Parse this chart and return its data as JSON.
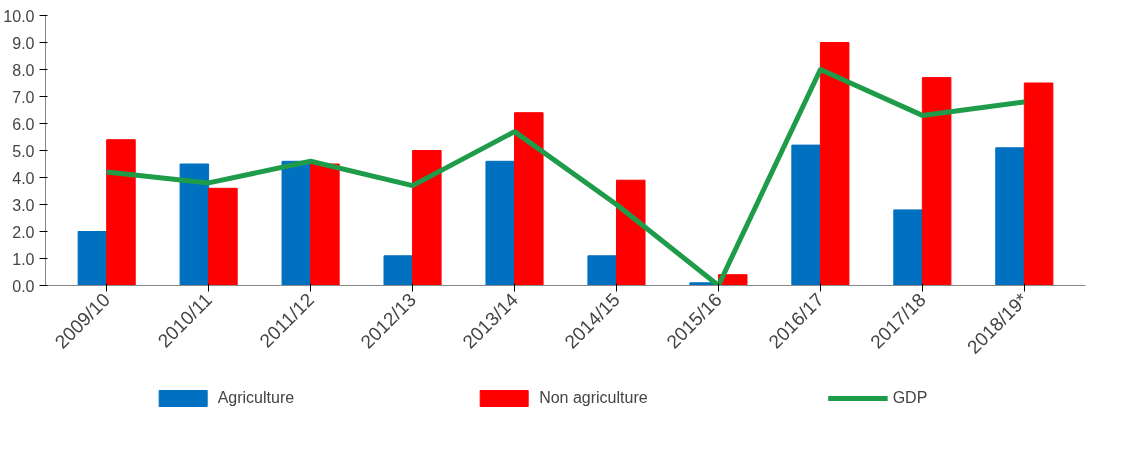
{
  "chart_data": {
    "type": "bar",
    "categories": [
      "2009/10",
      "2010/11",
      "2011/12",
      "2012/13",
      "2013/14",
      "2014/15",
      "2015/16",
      "2016/17",
      "2017/18",
      "2018/19*"
    ],
    "series": [
      {
        "name": "Agriculture",
        "color": "#0070c0",
        "values": [
          2.0,
          4.5,
          4.6,
          1.1,
          4.6,
          1.1,
          0.1,
          5.2,
          2.8,
          5.1
        ]
      },
      {
        "name": "Non agriculture",
        "color": "#ff0000",
        "values": [
          5.4,
          3.6,
          4.5,
          5.0,
          6.4,
          3.9,
          0.4,
          9.0,
          7.7,
          7.5
        ]
      },
      {
        "name": "GDP",
        "color": "#1e9c4a",
        "type": "line",
        "values": [
          4.2,
          3.8,
          4.6,
          3.7,
          5.7,
          3.0,
          0.0,
          8.0,
          6.3,
          6.8
        ]
      }
    ],
    "ylim": [
      0,
      10
    ],
    "yticks": [
      {
        "value": 0,
        "label": "0.0"
      },
      {
        "value": 1,
        "label": "1.0"
      },
      {
        "value": 2,
        "label": "2.0"
      },
      {
        "value": 3,
        "label": "3.0"
      },
      {
        "value": 4,
        "label": "4.0"
      },
      {
        "value": 5,
        "label": "5.0"
      },
      {
        "value": 6,
        "label": "6.0"
      },
      {
        "value": 7,
        "label": "7.0"
      },
      {
        "value": 8,
        "label": "8.0"
      },
      {
        "value": 9,
        "label": "9.0"
      },
      {
        "value": 10,
        "label": "10.0"
      }
    ],
    "grid": false,
    "legend": "bottom",
    "line_style": "solid"
  }
}
